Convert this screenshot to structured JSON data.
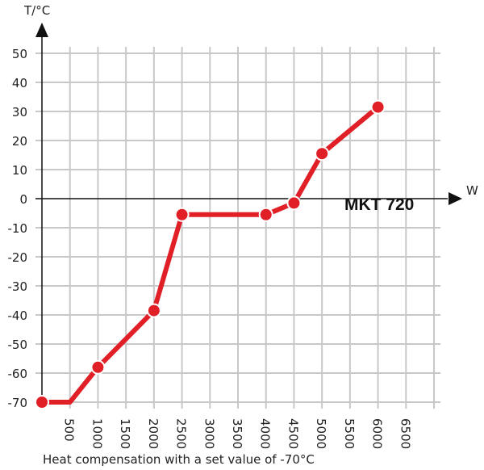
{
  "chart_data": {
    "type": "line",
    "title": "MKT 720",
    "caption": "Heat compensation with a set value of -70°C",
    "xlabel": "W",
    "ylabel": "T/°C",
    "xlim": [
      0,
      7000
    ],
    "ylim": [
      -70,
      50
    ],
    "grid": true,
    "x_ticks": [
      500,
      1000,
      1500,
      2000,
      2500,
      3000,
      3500,
      4000,
      4500,
      5000,
      5500,
      6000,
      6500
    ],
    "y_ticks": [
      50,
      40,
      30,
      20,
      10,
      0,
      -10,
      -20,
      -30,
      -40,
      -50,
      -60,
      -70
    ],
    "series": [
      {
        "name": "MKT 720",
        "color": "#e01f27",
        "x": [
          0,
          500,
          1000,
          2000,
          2500,
          4000,
          4500,
          5000,
          6000
        ],
        "y": [
          -70,
          -70,
          -58,
          -38.5,
          -5.5,
          -5.5,
          -1.5,
          15.5,
          31.5
        ],
        "markers": [
          true,
          false,
          true,
          true,
          true,
          true,
          true,
          true,
          true
        ]
      }
    ]
  }
}
